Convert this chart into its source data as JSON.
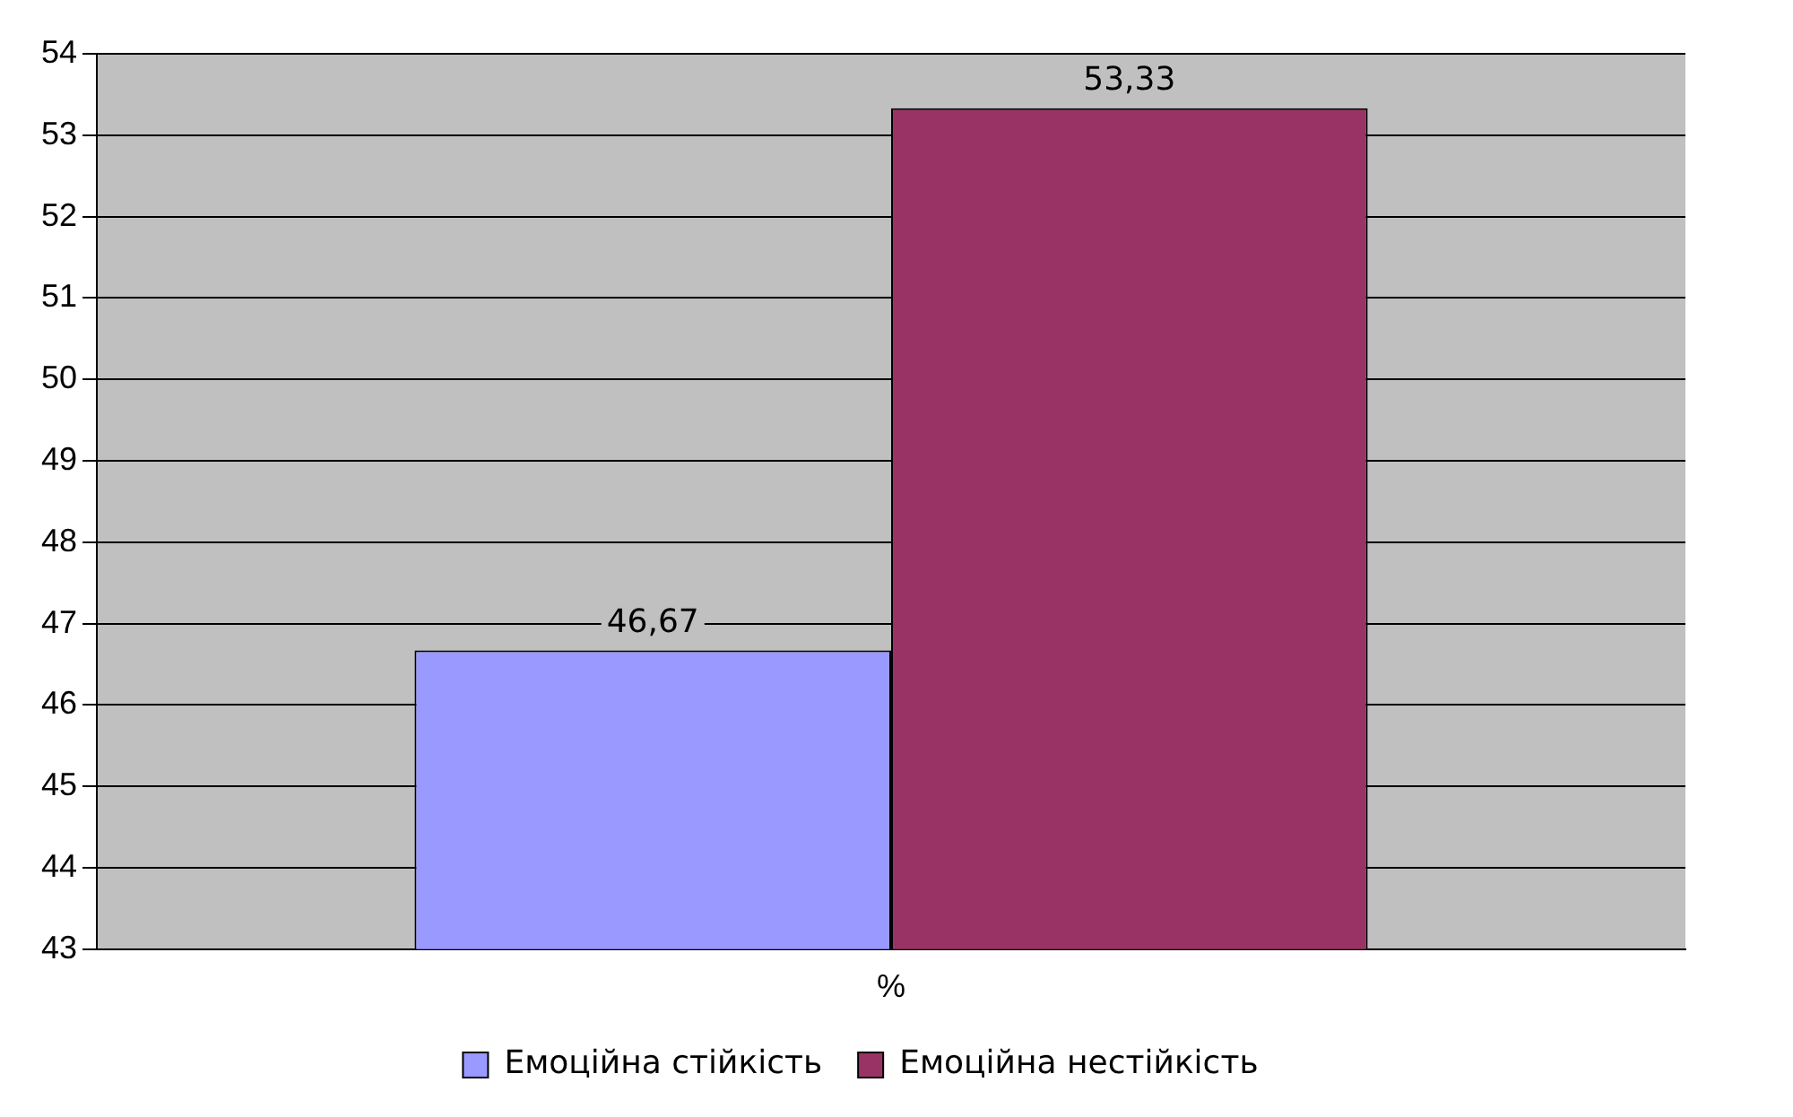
{
  "chart_data": {
    "type": "bar",
    "categories": [
      "%"
    ],
    "series": [
      {
        "name": "Емоційна стійкість",
        "color": "#9999ff",
        "values": [
          46.67
        ],
        "value_labels": [
          "46,67"
        ]
      },
      {
        "name": "Емоційна нестійкість",
        "color": "#993366",
        "values": [
          53.33
        ],
        "value_labels": [
          "53,33"
        ]
      }
    ],
    "ylim": [
      43,
      54
    ],
    "yticks": [
      43,
      44,
      45,
      46,
      47,
      48,
      49,
      50,
      51,
      52,
      53,
      54
    ],
    "grid": "y",
    "legend": "bottom"
  }
}
